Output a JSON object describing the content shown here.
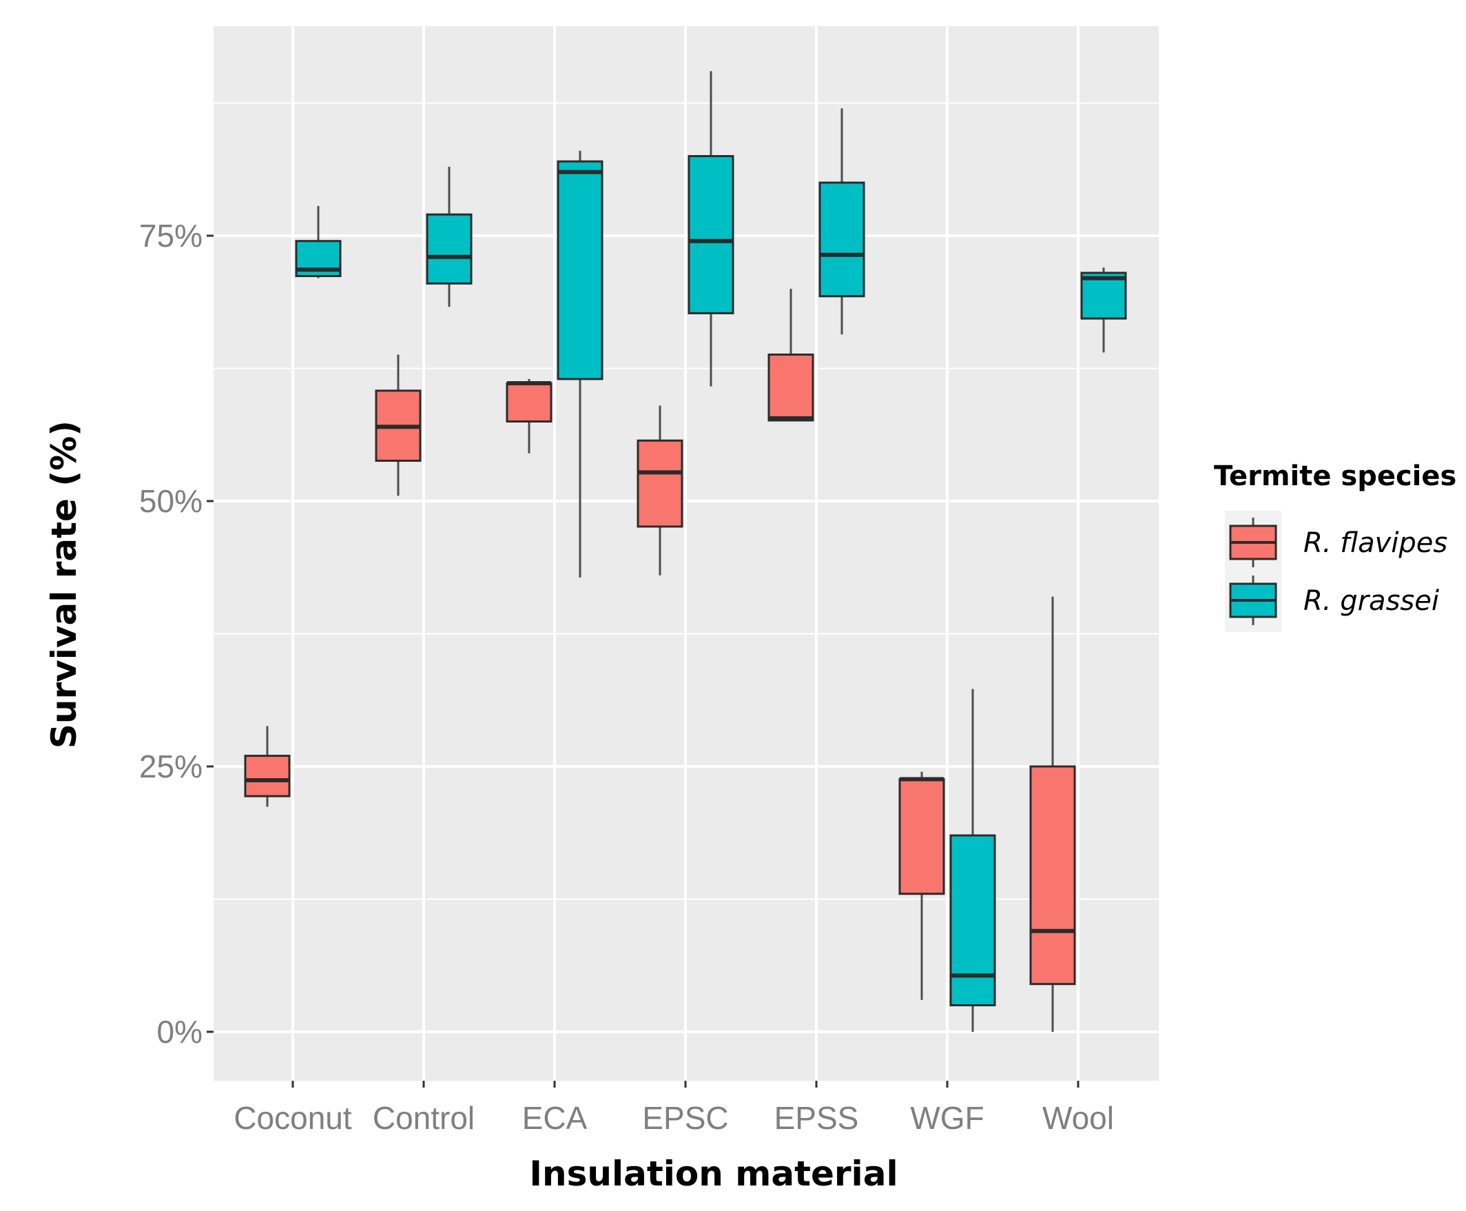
{
  "chart_data": {
    "type": "boxplot",
    "title": "",
    "xlabel": "Insulation material",
    "ylabel": "Survival rate (%)",
    "ylim": [
      -4,
      96
    ],
    "y_ticks": [
      0,
      25,
      50,
      75
    ],
    "y_tick_labels": [
      "0%",
      "25%",
      "50%",
      "75%"
    ],
    "grid": true,
    "legend": {
      "title": "Termite species",
      "position": "right"
    },
    "categories": [
      "Coconut",
      "Control",
      "ECA",
      "EPSC",
      "EPSS",
      "WGF",
      "Wool"
    ],
    "series": [
      {
        "name": "R. flavipes",
        "color": "#F8766D",
        "boxes": [
          {
            "category": "Coconut",
            "min": 21.2,
            "q1": 22.2,
            "median": 23.7,
            "q3": 26.0,
            "max": 28.8
          },
          {
            "category": "Control",
            "min": 50.5,
            "q1": 53.8,
            "median": 57.0,
            "q3": 60.4,
            "max": 63.8
          },
          {
            "category": "ECA",
            "min": 54.5,
            "q1": 57.5,
            "median": 61.1,
            "q3": 61.1,
            "max": 61.5
          },
          {
            "category": "EPSC",
            "min": 43.0,
            "q1": 47.6,
            "median": 52.7,
            "q3": 55.7,
            "max": 59.0
          },
          {
            "category": "EPSS",
            "min": 57.6,
            "q1": 57.6,
            "median": 57.8,
            "q3": 63.8,
            "max": 70.0
          },
          {
            "category": "WGF",
            "min": 3.0,
            "q1": 13.0,
            "median": 23.8,
            "q3": 23.8,
            "max": 24.5
          },
          {
            "category": "Wool",
            "min": 0.0,
            "q1": 4.5,
            "median": 9.5,
            "q3": 25.0,
            "max": 41.0
          }
        ]
      },
      {
        "name": "R. grassei",
        "color": "#00BFC4",
        "boxes": [
          {
            "category": "Coconut",
            "min": 71.0,
            "q1": 71.2,
            "median": 71.8,
            "q3": 74.5,
            "max": 77.8
          },
          {
            "category": "Control",
            "min": 68.3,
            "q1": 70.5,
            "median": 73.0,
            "q3": 77.0,
            "max": 81.5
          },
          {
            "category": "ECA",
            "min": 42.8,
            "q1": 61.5,
            "median": 81.0,
            "q3": 82.0,
            "max": 83.0
          },
          {
            "category": "EPSC",
            "min": 60.8,
            "q1": 67.7,
            "median": 74.5,
            "q3": 82.5,
            "max": 90.5
          },
          {
            "category": "EPSS",
            "min": 65.7,
            "q1": 69.3,
            "median": 73.2,
            "q3": 80.0,
            "max": 87.0
          },
          {
            "category": "WGF",
            "min": 0.0,
            "q1": 2.5,
            "median": 5.3,
            "q3": 18.5,
            "max": 32.3
          },
          {
            "category": "Wool",
            "min": 64.0,
            "q1": 67.2,
            "median": 71.0,
            "q3": 71.5,
            "max": 72.0
          }
        ]
      }
    ]
  }
}
